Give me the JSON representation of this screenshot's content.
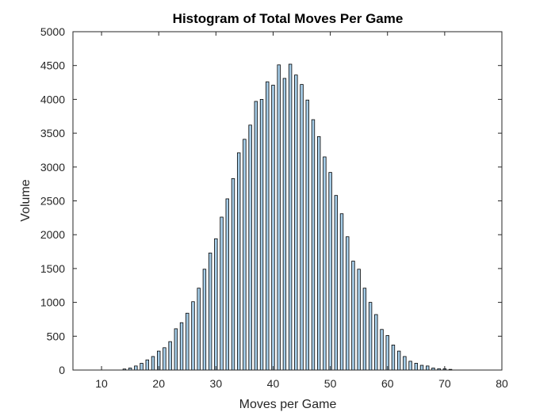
{
  "chart_data": {
    "type": "bar",
    "title": "Histogram of Total Moves Per Game",
    "xlabel": "Moves per Game",
    "ylabel": "Volume",
    "xlim": [
      5,
      80
    ],
    "ylim": [
      0,
      5000
    ],
    "xticks": [
      10,
      20,
      30,
      40,
      50,
      60,
      70,
      80
    ],
    "yticks": [
      0,
      500,
      1000,
      1500,
      2000,
      2500,
      3000,
      3500,
      4000,
      4500,
      5000
    ],
    "grid": false,
    "bar_color": "#a6cde8",
    "edge_color": "#000000",
    "x": [
      14,
      15,
      16,
      17,
      18,
      19,
      20,
      21,
      22,
      23,
      24,
      25,
      26,
      27,
      28,
      29,
      30,
      31,
      32,
      33,
      34,
      35,
      36,
      37,
      38,
      39,
      40,
      41,
      42,
      43,
      44,
      45,
      46,
      47,
      48,
      49,
      50,
      51,
      52,
      53,
      54,
      55,
      56,
      57,
      58,
      59,
      60,
      61,
      62,
      63,
      64,
      65,
      66,
      67,
      68,
      69,
      70,
      71
    ],
    "values": [
      15,
      30,
      60,
      100,
      150,
      200,
      280,
      330,
      420,
      610,
      700,
      840,
      1010,
      1210,
      1490,
      1730,
      1940,
      2260,
      2530,
      2830,
      3210,
      3410,
      3620,
      3970,
      4000,
      4260,
      4210,
      4510,
      4310,
      4520,
      4360,
      4220,
      3990,
      3700,
      3450,
      3150,
      2920,
      2580,
      2310,
      1970,
      1610,
      1490,
      1210,
      1000,
      820,
      600,
      510,
      370,
      280,
      200,
      130,
      100,
      70,
      60,
      30,
      20,
      20,
      10
    ]
  }
}
